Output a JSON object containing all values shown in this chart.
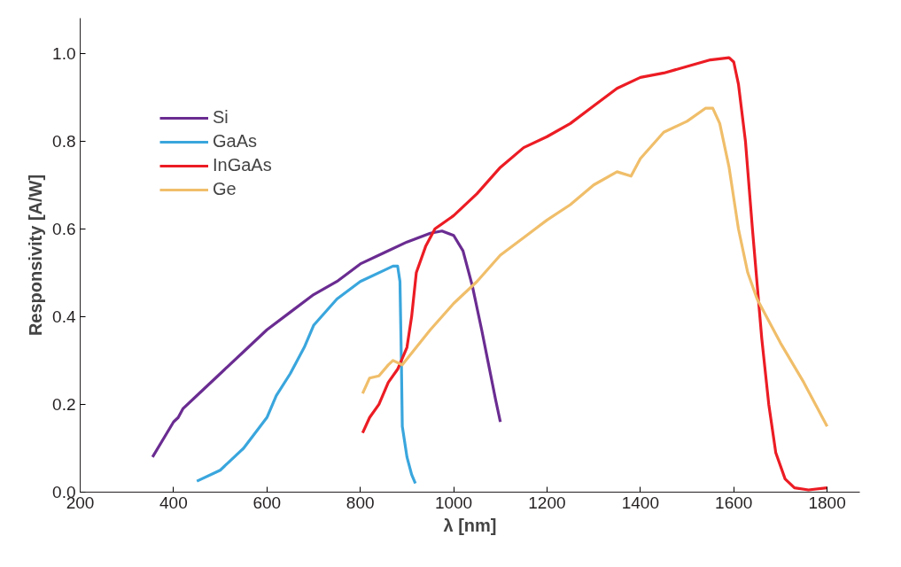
{
  "chart_data": {
    "type": "line",
    "xlabel": "λ [nm]",
    "ylabel": "Responsivity [A/W]",
    "xlim": [
      200,
      1870
    ],
    "ylim": [
      0,
      1.08
    ],
    "xticks": [
      200,
      400,
      600,
      800,
      1000,
      1200,
      1400,
      1600,
      1800
    ],
    "yticks": [
      {
        "value": 0,
        "label": "0.0"
      },
      {
        "value": 0.2,
        "label": "0.2"
      },
      {
        "value": 0.4,
        "label": "0.4"
      },
      {
        "value": 0.6,
        "label": "0.6"
      },
      {
        "value": 0.8,
        "label": "0.8"
      },
      {
        "value": 1,
        "label": "1.0"
      }
    ],
    "grid": false,
    "legend": "top left",
    "marker": "none",
    "line_style": "solid",
    "series": [
      {
        "name": "Si",
        "color": "#6a2c91",
        "x": [
          355,
          400,
          410,
          420,
          450,
          500,
          550,
          600,
          650,
          700,
          750,
          800,
          850,
          900,
          950,
          975,
          1000,
          1020,
          1040,
          1060,
          1075,
          1090,
          1100
        ],
        "values": [
          0.08,
          0.16,
          0.17,
          0.19,
          0.22,
          0.27,
          0.32,
          0.37,
          0.41,
          0.45,
          0.48,
          0.52,
          0.545,
          0.57,
          0.59,
          0.595,
          0.585,
          0.55,
          0.47,
          0.37,
          0.29,
          0.21,
          0.16
        ]
      },
      {
        "name": "GaAs",
        "color": "#3aa6dd",
        "x": [
          450,
          500,
          550,
          600,
          620,
          650,
          680,
          700,
          750,
          800,
          850,
          870,
          880,
          885,
          888,
          890,
          900,
          910,
          918
        ],
        "values": [
          0.025,
          0.05,
          0.1,
          0.17,
          0.22,
          0.27,
          0.33,
          0.38,
          0.44,
          0.48,
          0.505,
          0.515,
          0.515,
          0.48,
          0.3,
          0.15,
          0.08,
          0.04,
          0.02
        ]
      },
      {
        "name": "InGaAs",
        "color": "#ec1c24",
        "x": [
          805,
          820,
          840,
          860,
          880,
          900,
          910,
          920,
          940,
          960,
          1000,
          1050,
          1100,
          1150,
          1200,
          1250,
          1300,
          1350,
          1400,
          1450,
          1500,
          1550,
          1590,
          1600,
          1610,
          1625,
          1640,
          1660,
          1675,
          1690,
          1710,
          1730,
          1760,
          1800
        ],
        "values": [
          0.135,
          0.17,
          0.2,
          0.25,
          0.28,
          0.33,
          0.4,
          0.5,
          0.56,
          0.6,
          0.63,
          0.68,
          0.74,
          0.785,
          0.81,
          0.84,
          0.88,
          0.92,
          0.945,
          0.955,
          0.97,
          0.985,
          0.99,
          0.98,
          0.93,
          0.8,
          0.6,
          0.35,
          0.2,
          0.09,
          0.03,
          0.01,
          0.005,
          0.01
        ]
      },
      {
        "name": "Ge",
        "color": "#f0be6a",
        "x": [
          805,
          820,
          840,
          860,
          870,
          890,
          920,
          950,
          1000,
          1050,
          1100,
          1150,
          1200,
          1250,
          1300,
          1350,
          1380,
          1400,
          1450,
          1500,
          1540,
          1555,
          1570,
          1590,
          1610,
          1630,
          1650,
          1700,
          1750,
          1800
        ],
        "values": [
          0.225,
          0.26,
          0.265,
          0.29,
          0.3,
          0.29,
          0.33,
          0.37,
          0.43,
          0.48,
          0.54,
          0.58,
          0.62,
          0.655,
          0.7,
          0.73,
          0.72,
          0.76,
          0.82,
          0.845,
          0.875,
          0.875,
          0.84,
          0.74,
          0.6,
          0.5,
          0.44,
          0.34,
          0.25,
          0.15
        ]
      }
    ]
  }
}
